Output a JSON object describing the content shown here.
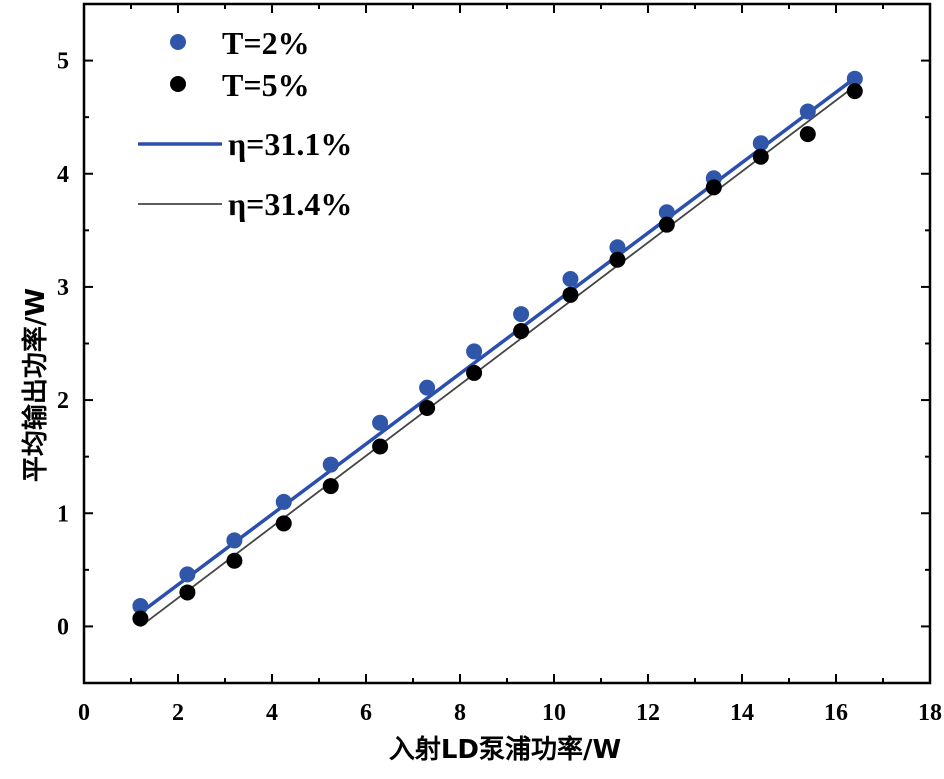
{
  "chart_data": {
    "type": "scatter",
    "xlabel": "入射LD泵浦功率/W",
    "ylabel": "平均输出功率/W",
    "xlim": [
      0,
      18
    ],
    "ylim": [
      -0.5,
      5.5
    ],
    "xticks": [
      0,
      2,
      4,
      6,
      8,
      10,
      12,
      14,
      16,
      18
    ],
    "yticks": [
      0,
      1,
      2,
      3,
      4,
      5
    ],
    "grid": false,
    "legend_position": "top-left",
    "series": [
      {
        "name": "T=2%",
        "kind": "points",
        "color": "#2f56a8",
        "x": [
          1.2,
          2.2,
          3.2,
          4.25,
          5.25,
          6.3,
          7.3,
          8.3,
          9.3,
          10.35,
          11.35,
          12.4,
          13.4,
          14.4,
          15.4,
          16.4
        ],
        "y": [
          0.18,
          0.46,
          0.76,
          1.1,
          1.43,
          1.8,
          2.11,
          2.43,
          2.76,
          3.07,
          3.35,
          3.66,
          3.96,
          4.27,
          4.55,
          4.84
        ]
      },
      {
        "name": "T=5%",
        "kind": "points",
        "color": "#000000",
        "x": [
          1.2,
          2.2,
          3.2,
          4.25,
          5.25,
          6.3,
          7.3,
          8.3,
          9.3,
          10.35,
          11.35,
          12.4,
          13.4,
          14.4,
          15.4,
          16.4
        ],
        "y": [
          0.07,
          0.3,
          0.58,
          0.91,
          1.24,
          1.59,
          1.93,
          2.24,
          2.61,
          2.93,
          3.24,
          3.55,
          3.88,
          4.15,
          4.35,
          4.73
        ]
      },
      {
        "name": "η=31.1%",
        "kind": "line",
        "color": "#2a4fae",
        "x": [
          1.2,
          16.45
        ],
        "y": [
          0.12,
          4.86
        ]
      },
      {
        "name": "η=31.4%",
        "kind": "line",
        "color": "#444444",
        "x": [
          1.2,
          16.45
        ],
        "y": [
          0.0,
          4.79
        ]
      }
    ]
  }
}
